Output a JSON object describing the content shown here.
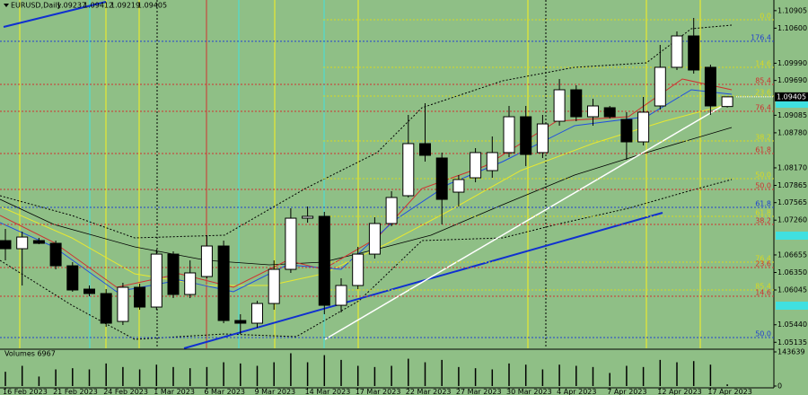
{
  "chart_data": {
    "type": "candlestick",
    "symbol": "EURUSD,Daily",
    "categories": [
      "16 Feb 2023",
      null,
      null,
      "21 Feb 2023",
      null,
      null,
      "24 Feb 2023",
      null,
      null,
      "1 Mar 2023",
      null,
      null,
      "6 Mar 2023",
      null,
      null,
      "9 Mar 2023",
      null,
      null,
      "14 Mar 2023",
      null,
      null,
      "17 Mar 2023",
      null,
      null,
      "22 Mar 2023",
      null,
      null,
      "27 Mar 2023",
      null,
      null,
      "30 Mar 2023",
      null,
      null,
      "4 Apr 2023",
      null,
      null,
      "7 Apr 2023",
      null,
      null,
      "12 Apr 2023",
      null,
      null,
      "17 Apr 2023",
      null
    ],
    "open": [
      1.06904,
      1.06763,
      1.06904,
      1.06857,
      1.06466,
      1.0606,
      1.05983,
      1.05498,
      1.06092,
      1.05748,
      1.06669,
      1.05967,
      1.06279,
      1.0681,
      1.05514,
      1.05467,
      1.0581,
      1.06404,
      1.07294,
      1.07326,
      1.05779,
      1.06123,
      1.06669,
      1.07201,
      1.07685,
      1.08591,
      1.08341,
      1.07747,
      1.07997,
      1.08122,
      1.08435,
      1.09059,
      1.08435,
      1.08981,
      1.09528,
      1.09059,
      1.09216,
      1.09012,
      1.08622,
      1.09247,
      1.09919,
      1.10465,
      1.09919,
      1.09237
    ],
    "high": [
      1.07107,
      1.0706,
      1.06951,
      1.06904,
      1.06529,
      1.06123,
      1.0606,
      1.0617,
      1.06154,
      1.06748,
      1.06716,
      1.0656,
      1.06998,
      1.06904,
      1.05623,
      1.05857,
      1.0656,
      1.07466,
      1.07497,
      1.07404,
      1.06248,
      1.06795,
      1.0731,
      1.07763,
      1.09091,
      1.09294,
      1.08435,
      1.08044,
      1.08513,
      1.08716,
      1.09247,
      1.09247,
      1.09091,
      1.09715,
      1.09606,
      1.09372,
      1.09247,
      1.09138,
      1.09403,
      1.10309,
      1.10543,
      1.10778,
      1.09965,
      1.09412
    ],
    "low": [
      1.0656,
      1.06123,
      1.06841,
      1.06404,
      1.06014,
      1.05936,
      1.05404,
      1.05436,
      1.05701,
      1.05701,
      1.05904,
      1.05904,
      1.06248,
      1.05467,
      1.05279,
      1.05389,
      1.05701,
      1.06342,
      1.07216,
      1.05623,
      1.05654,
      1.0606,
      1.06592,
      1.07154,
      1.07654,
      1.08278,
      1.07185,
      1.07497,
      1.07919,
      1.07997,
      1.08357,
      1.082,
      1.08341,
      1.08903,
      1.08981,
      1.08903,
      1.09028,
      1.0831,
      1.0856,
      1.09184,
      1.09872,
      1.09809,
      1.09091,
      1.09219
    ],
    "close": [
      1.06763,
      1.06966,
      1.06857,
      1.06466,
      1.06045,
      1.05983,
      1.05467,
      1.06092,
      1.05748,
      1.06669,
      1.05967,
      1.06342,
      1.0681,
      1.05514,
      1.05467,
      1.0581,
      1.06404,
      1.07294,
      1.07326,
      1.05779,
      1.06123,
      1.06669,
      1.07201,
      1.07654,
      1.08591,
      1.08388,
      1.07622,
      1.07966,
      1.08435,
      1.08435,
      1.09059,
      1.08403,
      1.08934,
      1.09528,
      1.09059,
      1.09247,
      1.09059,
      1.08622,
      1.09138,
      1.09919,
      1.10465,
      1.09872,
      1.09247,
      1.09405
    ],
    "up_color": "#ffffff",
    "down_color": "#000000",
    "ylim": [
      1.0503,
      1.1109
    ],
    "yticks": [
      1.10905,
      {
        "value": 1.106,
        "label": "1.10600"
      },
      {
        "value": 1.0999,
        "label": "1.09990"
      },
      {
        "value": 1.0969,
        "label": "1.09690"
      },
      1.09085,
      {
        "value": 1.0878,
        "label": "1.08780"
      },
      {
        "value": 1.0817,
        "label": "1.08170"
      },
      1.07865,
      1.07565,
      {
        "value": 1.0726,
        "label": "1.07260"
      },
      1.06655,
      {
        "value": 1.0635,
        "label": "1.06350"
      },
      1.06045,
      {
        "value": 1.0544,
        "label": "1.05440"
      },
      1.05135
    ],
    "levels": [
      {
        "label": "0.0",
        "price": 1.10746,
        "color": "#d8d820"
      },
      {
        "label": "176.4",
        "price": 1.10371,
        "color": "#2040d0"
      },
      {
        "label": "14.6",
        "price": 1.09919,
        "color": "#d8d820"
      },
      {
        "label": "85.4",
        "price": 1.09622,
        "color": "#d03030"
      },
      {
        "label": "23.6",
        "price": 1.09419,
        "color": "#d8d820"
      },
      {
        "label": "76.4",
        "price": 1.09153,
        "color": "#d03030"
      },
      {
        "label": "38.2",
        "price": 1.08638,
        "color": "#d8d820"
      },
      {
        "label": "61.8",
        "price": 1.08419,
        "color": "#d03030"
      },
      {
        "label": "50.0",
        "price": 1.07982,
        "color": "#d8d820"
      },
      {
        "label": "50.0",
        "price": 1.07794,
        "color": "#d03030"
      },
      {
        "label": "61.8",
        "price": 1.07482,
        "color": "#2040d0"
      },
      {
        "label": "61.8",
        "price": 1.07326,
        "color": "#d8d820"
      },
      {
        "label": "38.2",
        "price": 1.07185,
        "color": "#d03030"
      },
      {
        "label": "76.4",
        "price": 1.06529,
        "color": "#d8d820"
      },
      {
        "label": "23.6",
        "price": 1.06435,
        "color": "#d03030"
      },
      {
        "label": "85.4",
        "price": 1.06045,
        "color": "#d8d820"
      },
      {
        "label": "14.6",
        "price": 1.05936,
        "color": "#d03030"
      },
      {
        "label": "50.0",
        "price": 1.05217,
        "color": "#2040d0"
      }
    ],
    "volume_title": "Volumes 6967",
    "volumes": [
      60000,
      85000,
      40000,
      70000,
      75000,
      70000,
      95000,
      80000,
      70000,
      90000,
      80000,
      75000,
      80000,
      100000,
      95000,
      85000,
      100000,
      138000,
      100000,
      130000,
      110000,
      85000,
      80000,
      85000,
      115000,
      100000,
      110000,
      80000,
      75000,
      70000,
      95000,
      90000,
      70000,
      90000,
      85000,
      80000,
      55000,
      85000,
      80000,
      110000,
      100000,
      105000,
      90000,
      6967
    ],
    "volume_color": "#000000",
    "vlim": [
      0,
      143639
    ],
    "vticks": [
      143639,
      0
    ]
  }
}
